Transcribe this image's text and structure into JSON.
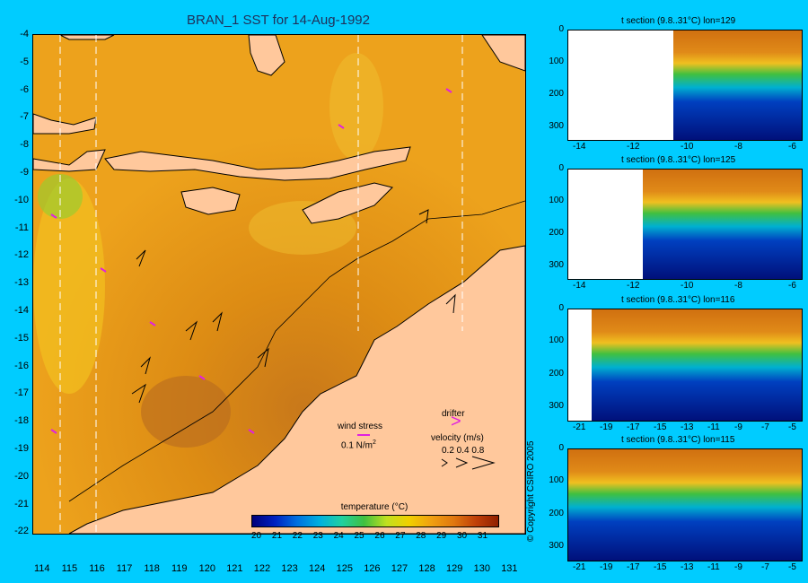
{
  "title": "BRAN_1 SST for 14-Aug-1992",
  "map": {
    "lat_ticks": [
      "-4",
      "-5",
      "-6",
      "-7",
      "-8",
      "-9",
      "-10",
      "-11",
      "-12",
      "-13",
      "-14",
      "-15",
      "-16",
      "-17",
      "-18",
      "-19",
      "-20",
      "-21",
      "-22"
    ],
    "lon_ticks": [
      "114",
      "115",
      "116",
      "117",
      "118",
      "119",
      "120",
      "121",
      "122",
      "123",
      "124",
      "125",
      "126",
      "127",
      "128",
      "129",
      "130",
      "131"
    ],
    "legend": {
      "wind_stress_label": "wind stress",
      "wind_stress_value": "0.1 N/m",
      "wind_stress_sup": "2",
      "drifter_label": "drifter",
      "velocity_label": "velocity (m/s)",
      "velocity_values": "0.2 0.4 0.8"
    },
    "colorbar": {
      "label": "temperature (°C)",
      "ticks": [
        "20",
        "21",
        "22",
        "23",
        "24",
        "25",
        "26",
        "27",
        "28",
        "29",
        "30",
        "31"
      ]
    },
    "colors": {
      "ocean_warm": "#e8930a",
      "ocean_mid": "#f0b020",
      "land": "#ffc89c",
      "background": "#00ccff"
    }
  },
  "sections": [
    {
      "title": "t section (9.8..31°C) lon=129",
      "y_ticks": [
        "0",
        "100",
        "200",
        "300"
      ],
      "x_ticks": [
        "-14",
        "-12",
        "-10",
        "-8",
        "-6"
      ]
    },
    {
      "title": "t section (9.8..31°C) lon=125",
      "y_ticks": [
        "0",
        "100",
        "200",
        "300"
      ],
      "x_ticks": [
        "-14",
        "-12",
        "-10",
        "-8",
        "-6"
      ]
    },
    {
      "title": "t section (9.8..31°C) lon=116",
      "y_ticks": [
        "0",
        "100",
        "200",
        "300"
      ],
      "x_ticks": [
        "-21",
        "-19",
        "-17",
        "-15",
        "-13",
        "-11",
        "-9",
        "-7",
        "-5"
      ]
    },
    {
      "title": "t section (9.8..31°C) lon=115",
      "y_ticks": [
        "0",
        "100",
        "200",
        "300"
      ],
      "x_ticks": [
        "-21",
        "-19",
        "-17",
        "-15",
        "-13",
        "-11",
        "-9",
        "-7",
        "-5"
      ]
    }
  ],
  "copyright": "© Copyright CSIRO 2005"
}
